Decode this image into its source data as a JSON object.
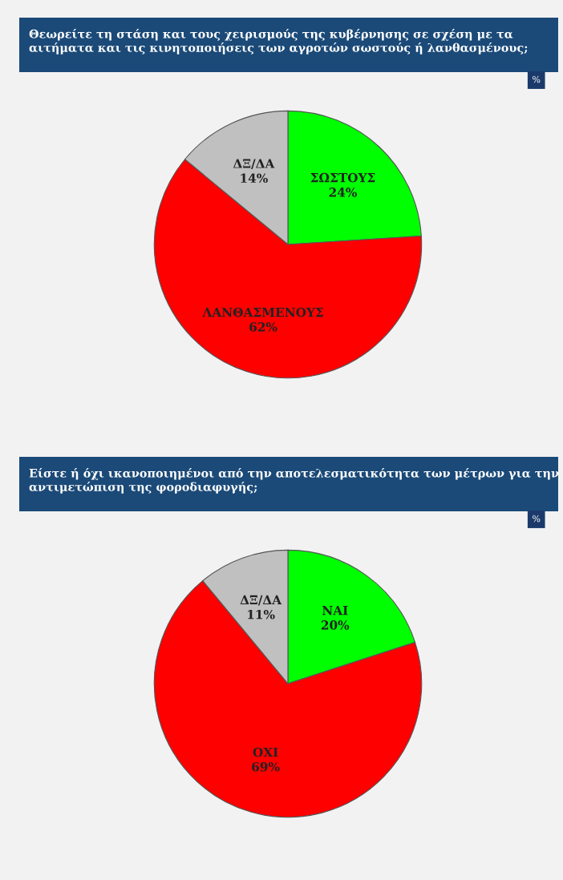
{
  "chart_data": [
    {
      "type": "pie",
      "title": "Θεωρείτε τη στάση και τους χειρισμούς της κυβέρνησης σε σχέση με τα αιτήματα και τις κινητοποιήσεις των αγροτών σωστούς ή λανθασμένους;",
      "categories": [
        "ΣΩΣΤΟΥΣ",
        "ΛΑΝΘΑΣΜΕΝΟΥΣ",
        "ΔΞ/ΔΑ"
      ],
      "values": [
        24,
        62,
        14
      ],
      "value_labels": [
        "24%",
        "62%",
        "14%"
      ],
      "colors": [
        "#00ff00",
        "#ff0000",
        "#c0c0c0"
      ],
      "annotations": [
        "%"
      ]
    },
    {
      "type": "pie",
      "title": "Είστε ή όχι ικανοποιημένοι από την αποτελεσματικότητα των μέτρων για την αντιμετώπιση της φοροδιαφυγής;",
      "categories": [
        "ΝΑΙ",
        "ΟΧΙ",
        "ΔΞ/ΔΑ"
      ],
      "values": [
        20,
        69,
        11
      ],
      "value_labels": [
        "20%",
        "69%",
        "11%"
      ],
      "colors": [
        "#00ff00",
        "#ff0000",
        "#c0c0c0"
      ],
      "annotations": [
        "%"
      ]
    }
  ]
}
